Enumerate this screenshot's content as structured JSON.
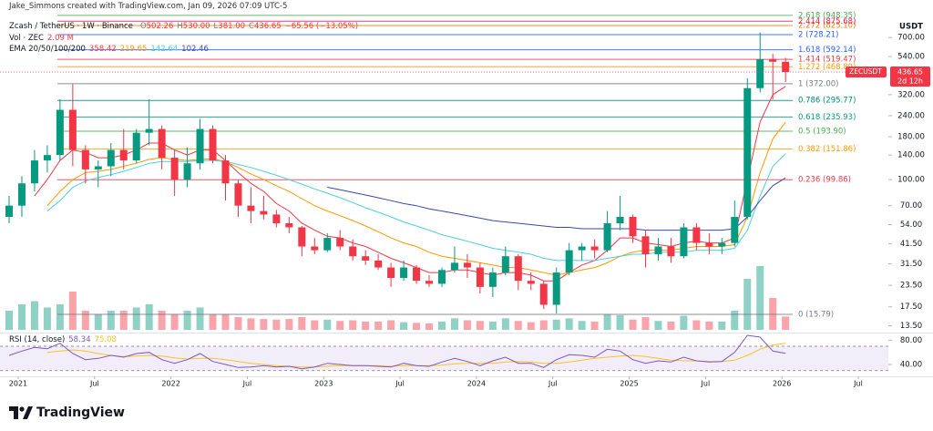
{
  "header": {
    "credit": "Jake_Simmons created with TradingView.com, Jan 09, 2026 07:09 UTC-5",
    "symbol": "Zcash / TetherUS · 1W · Binance",
    "ohlc": [
      {
        "label": "O",
        "value": "502.26"
      },
      {
        "label": "H",
        "value": "530.00"
      },
      {
        "label": "L",
        "value": "381.00"
      },
      {
        "label": "C",
        "value": "436.65"
      }
    ],
    "change": "−65.56 (−13.05%)",
    "vol_label": "Vol · ZEC",
    "vol_value": "2.09 M",
    "ema_label": "EMA 20/50/100/200",
    "ema_values": [
      "358.42",
      "219.65",
      "142.64",
      "102.46"
    ],
    "rsi_label": "RSI (14, close)",
    "rsi_values": [
      "58.34",
      "75.08"
    ]
  },
  "logo": "TradingView",
  "chart_data": {
    "type": "candlestick",
    "currency": "USDT",
    "tag_symbol": "ZECUSDT",
    "price_tag": "436.65",
    "countdown": "2d 12h",
    "categories": [
      null,
      "2021",
      null,
      null,
      null,
      null,
      null,
      "Jul",
      null,
      null,
      null,
      null,
      null,
      "2022",
      null,
      null,
      null,
      null,
      null,
      "Jul",
      null,
      null,
      null,
      null,
      null,
      "2023",
      null,
      null,
      null,
      null,
      null,
      "Jul",
      null,
      null,
      null,
      null,
      null,
      "2024",
      null,
      null,
      null,
      null,
      null,
      "Jul",
      null,
      null,
      null,
      null,
      null,
      "2025",
      null,
      null,
      null,
      null,
      null,
      "Jul",
      null,
      null,
      null,
      null,
      null,
      "2026",
      null,
      null,
      null,
      null,
      null,
      "Jul"
    ],
    "open": [
      60,
      70,
      95,
      130,
      140,
      260,
      150,
      115,
      120,
      150,
      130,
      190,
      200,
      135,
      100,
      125,
      200,
      130,
      95,
      70,
      65,
      62,
      55,
      52,
      40,
      38,
      45,
      40,
      35,
      33,
      30,
      26,
      30,
      25,
      24,
      29,
      32,
      30,
      23,
      28,
      35,
      25,
      24,
      18,
      28,
      38,
      40,
      38,
      55,
      60,
      46,
      36,
      40,
      35,
      52,
      42,
      40,
      42,
      60,
      350,
      520,
      502.26,
      null,
      null,
      null,
      null,
      null,
      null
    ],
    "high": [
      80,
      105,
      150,
      160,
      300,
      370,
      160,
      130,
      165,
      200,
      200,
      300,
      210,
      150,
      155,
      230,
      210,
      140,
      100,
      90,
      80,
      66,
      60,
      53,
      45,
      48,
      50,
      44,
      38,
      36,
      32,
      33,
      31,
      27,
      30,
      40,
      36,
      32,
      30,
      40,
      36,
      28,
      25,
      30,
      42,
      42,
      44,
      65,
      80,
      62,
      50,
      45,
      45,
      55,
      55,
      48,
      45,
      75,
      400,
      750,
      560,
      530,
      null,
      null,
      null,
      null,
      null,
      null
    ],
    "low": [
      55,
      60,
      85,
      110,
      130,
      120,
      95,
      90,
      105,
      115,
      125,
      160,
      115,
      80,
      90,
      115,
      125,
      75,
      60,
      55,
      58,
      52,
      48,
      35,
      36,
      37,
      38,
      33,
      31,
      29,
      23,
      25,
      24,
      23,
      23,
      28,
      26,
      21,
      20,
      27,
      22,
      22,
      17,
      16,
      27,
      33,
      34,
      37,
      50,
      42,
      30,
      33,
      32,
      34,
      38,
      36,
      36,
      40,
      58,
      330,
      300,
      381,
      null,
      null,
      null,
      null,
      null,
      null
    ],
    "close": [
      70,
      95,
      130,
      140,
      260,
      150,
      115,
      120,
      150,
      130,
      190,
      200,
      135,
      100,
      125,
      200,
      130,
      95,
      70,
      65,
      62,
      55,
      52,
      40,
      38,
      45,
      40,
      35,
      33,
      30,
      26,
      30,
      25,
      24,
      29,
      32,
      30,
      23,
      28,
      35,
      25,
      24,
      18,
      28,
      38,
      40,
      38,
      55,
      60,
      46,
      36,
      40,
      35,
      52,
      42,
      40,
      42,
      60,
      350,
      520,
      502.26,
      436.65,
      null,
      null,
      null,
      null,
      null,
      null
    ],
    "up_color": "#089981",
    "down_color": "#f23645",
    "log_scale": true,
    "ylim": [
      12.3,
      935
    ],
    "yticks": [
      {
        "value": 13.5,
        "label": "13.50"
      },
      {
        "value": 17.5,
        "label": "17.50"
      },
      {
        "value": 23.5,
        "label": "23.50"
      },
      {
        "value": 31.5,
        "label": "31.50"
      },
      {
        "value": 41.5,
        "label": "41.50"
      },
      {
        "value": 54,
        "label": "54.00"
      },
      {
        "value": 70,
        "label": "70.00"
      },
      {
        "value": 100,
        "label": "100.00"
      },
      {
        "value": 140,
        "label": "140.00"
      },
      {
        "value": 180,
        "label": "180.00"
      },
      {
        "value": 240,
        "label": "240.00"
      },
      {
        "value": 320,
        "label": "320.00"
      },
      {
        "value": 540,
        "label": "540.00"
      },
      {
        "value": 700,
        "label": "700.00"
      }
    ],
    "ema": [
      {
        "color": "#f23645",
        "values": [
          null,
          null,
          80,
          100,
          130,
          150,
          145,
          135,
          135,
          140,
          150,
          165,
          165,
          150,
          140,
          150,
          150,
          130,
          110,
          95,
          85,
          72,
          65,
          55,
          50,
          46,
          45,
          42,
          40,
          37,
          34,
          32,
          30,
          28,
          28,
          29,
          29,
          28,
          27,
          28,
          28,
          27,
          25,
          25,
          28,
          31,
          33,
          38,
          45,
          45,
          42,
          41,
          40,
          42,
          43,
          42,
          42,
          45,
          100,
          220,
          320,
          358.42,
          null,
          null,
          null,
          null,
          null,
          null
        ]
      },
      {
        "color": "#ff9800",
        "values": [
          null,
          null,
          null,
          70,
          85,
          100,
          110,
          112,
          115,
          120,
          125,
          132,
          135,
          132,
          130,
          132,
          133,
          128,
          118,
          108,
          100,
          92,
          85,
          77,
          70,
          65,
          61,
          57,
          53,
          49,
          45,
          42,
          40,
          37,
          35,
          34,
          33,
          32,
          31,
          30,
          30,
          29,
          28,
          27,
          28,
          29,
          30,
          32,
          35,
          37,
          38,
          38,
          38,
          39,
          40,
          40,
          40,
          41,
          60,
          110,
          175,
          219.65,
          null,
          null,
          null,
          null,
          null,
          null
        ]
      },
      {
        "color": "#4dd0e1",
        "values": [
          null,
          null,
          null,
          65,
          75,
          90,
          98,
          103,
          107,
          112,
          118,
          125,
          128,
          128,
          128,
          130,
          130,
          128,
          123,
          118,
          112,
          106,
          100,
          94,
          88,
          83,
          78,
          73,
          68,
          64,
          60,
          56,
          53,
          50,
          47,
          45,
          43,
          41,
          39,
          38,
          37,
          36,
          34,
          33,
          33,
          33,
          33,
          34,
          35,
          36,
          36,
          37,
          37,
          37,
          38,
          38,
          38,
          39,
          50,
          80,
          120,
          142.64,
          null,
          null,
          null,
          null,
          null,
          null
        ]
      },
      {
        "color": "#3949ab",
        "values": [
          null,
          null,
          null,
          null,
          null,
          null,
          null,
          null,
          null,
          null,
          null,
          null,
          null,
          null,
          null,
          null,
          null,
          null,
          null,
          null,
          null,
          null,
          null,
          null,
          null,
          90,
          87,
          84,
          81,
          78,
          75,
          72,
          70,
          67,
          65,
          63,
          61,
          59,
          57,
          56,
          55,
          54,
          53,
          52,
          52,
          51,
          51,
          51,
          51,
          51,
          50,
          50,
          50,
          50,
          50,
          50,
          50,
          51,
          60,
          75,
          92,
          102.46,
          null,
          null,
          null,
          null,
          null,
          null
        ]
      }
    ],
    "volume": {
      "max": 10,
      "values": [
        3,
        4,
        4.5,
        3.5,
        4,
        6,
        3,
        2.5,
        3,
        3,
        3.5,
        4,
        3,
        2.5,
        3,
        3.5,
        2.5,
        2.5,
        2,
        1.8,
        1.7,
        1.6,
        1.7,
        2,
        1.5,
        1.6,
        1.4,
        1.5,
        1.3,
        1.3,
        1.5,
        1.2,
        1.1,
        1,
        1.3,
        1.8,
        1.5,
        1.4,
        1.3,
        1.8,
        1.4,
        1.2,
        1.5,
        1.6,
        1.8,
        1.4,
        1.3,
        2.5,
        2.3,
        1.6,
        2,
        1.4,
        1.3,
        2.2,
        1.5,
        1.3,
        1.3,
        3,
        8,
        10,
        5,
        2.09,
        null,
        null,
        null,
        null,
        null,
        null
      ]
    },
    "fib": [
      {
        "label": "0 (15.79)",
        "price": 15.79,
        "color": "#787b86"
      },
      {
        "label": "0.236 (99.86)",
        "price": 99.86,
        "color": "#f23645"
      },
      {
        "label": "0.382 (151.86)",
        "price": 151.86,
        "color": "#ff9800"
      },
      {
        "label": "0.5 (193.90)",
        "price": 193.9,
        "color": "#4caf50"
      },
      {
        "label": "0.618 (235.93)",
        "price": 235.93,
        "color": "#089981"
      },
      {
        "label": "0.786 (295.77)",
        "price": 295.77,
        "color": "#00897b"
      },
      {
        "label": "1 (372.00)",
        "price": 372,
        "color": "#787b86"
      },
      {
        "label": "1.272 (468.89)",
        "price": 468.89,
        "color": "#ff9800"
      },
      {
        "label": "1.414 (519.47)",
        "price": 519.47,
        "color": "#f23645"
      },
      {
        "label": "1.618 (592.14)",
        "price": 592.14,
        "color": "#2962ff"
      },
      {
        "label": "2 (728.21)",
        "price": 728.21,
        "color": "#2962ff"
      },
      {
        "label": "2.272 (825.10)",
        "price": 825.1,
        "color": "#f57c00"
      },
      {
        "label": "2.414 (875.68)",
        "price": 875.68,
        "color": "#e91e63"
      },
      {
        "label": "2.618 (948.35)",
        "price": 948.35,
        "color": "#4caf50"
      }
    ],
    "rsi": {
      "color": "#7e57c2",
      "ma_color": "#f9c320",
      "ylim": [
        22,
        91
      ],
      "bands": [
        70,
        30
      ],
      "yticks": [
        {
          "value": 80,
          "label": "80.00"
        },
        {
          "value": 40,
          "label": "40.00"
        }
      ],
      "values": [
        55,
        62,
        68,
        66,
        75,
        58,
        48,
        50,
        55,
        52,
        58,
        60,
        48,
        42,
        48,
        58,
        45,
        40,
        35,
        36,
        38,
        36,
        37,
        33,
        36,
        42,
        40,
        38,
        38,
        37,
        36,
        42,
        38,
        37,
        44,
        50,
        45,
        38,
        46,
        52,
        42,
        42,
        35,
        48,
        56,
        55,
        52,
        65,
        62,
        48,
        42,
        46,
        44,
        52,
        46,
        44,
        45,
        60,
        88,
        85,
        62,
        58.34,
        null,
        null,
        null,
        null,
        null,
        null
      ],
      "ma_values": [
        null,
        null,
        null,
        60,
        62,
        64,
        62,
        58,
        55,
        53,
        54,
        55,
        54,
        51,
        49,
        50,
        50,
        48,
        45,
        42,
        40,
        38,
        37,
        36,
        36,
        37,
        38,
        38,
        38,
        38,
        37,
        38,
        38,
        38,
        39,
        41,
        42,
        42,
        42,
        44,
        45,
        44,
        42,
        42,
        44,
        47,
        50,
        52,
        54,
        55,
        53,
        50,
        47,
        46,
        46,
        45,
        45,
        47,
        55,
        65,
        72,
        75.08,
        null,
        null,
        null,
        null,
        null,
        null
      ]
    }
  }
}
